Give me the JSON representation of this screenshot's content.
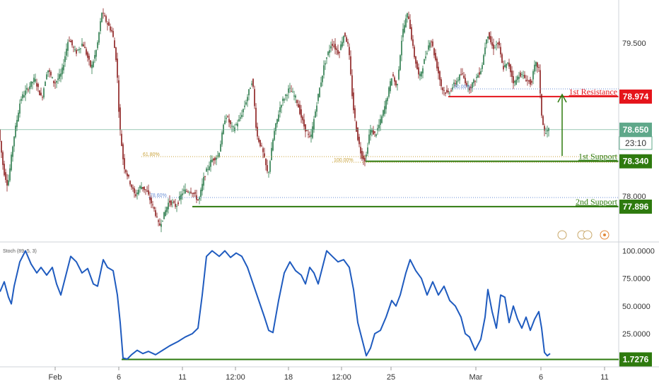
{
  "chart_data": [
    {
      "type": "candlestick",
      "panel": "price",
      "y_ticks": [
        "79.500",
        "78.000"
      ],
      "ylim": [
        77.55,
        79.92
      ],
      "x_ticks": [
        "Feb",
        "6",
        "11",
        "12:00",
        "18",
        "12:00",
        "25",
        "Mar",
        "6",
        "11"
      ],
      "grid": false,
      "last_price": "78.650",
      "countdown": "23:10",
      "ohlc_path": [
        [
          0,
          78.6
        ],
        [
          6,
          78.25
        ],
        [
          12,
          78.1
        ],
        [
          20,
          78.55
        ],
        [
          30,
          78.95
        ],
        [
          40,
          79.05
        ],
        [
          50,
          79.15
        ],
        [
          60,
          78.95
        ],
        [
          68,
          79.25
        ],
        [
          78,
          79.1
        ],
        [
          88,
          79.2
        ],
        [
          98,
          79.55
        ],
        [
          108,
          79.4
        ],
        [
          118,
          79.5
        ],
        [
          130,
          79.25
        ],
        [
          138,
          79.45
        ],
        [
          145,
          79.8
        ],
        [
          152,
          79.7
        ],
        [
          160,
          79.6
        ],
        [
          166,
          79.3
        ],
        [
          170,
          78.7
        ],
        [
          176,
          78.3
        ],
        [
          184,
          78.15
        ],
        [
          192,
          78.0
        ],
        [
          200,
          78.1
        ],
        [
          208,
          78.05
        ],
        [
          214,
          77.95
        ],
        [
          220,
          77.85
        ],
        [
          226,
          77.7
        ],
        [
          232,
          77.8
        ],
        [
          240,
          77.95
        ],
        [
          250,
          77.9
        ],
        [
          260,
          78.05
        ],
        [
          272,
          78.05
        ],
        [
          282,
          77.95
        ],
        [
          290,
          78.2
        ],
        [
          300,
          78.35
        ],
        [
          310,
          78.4
        ],
        [
          320,
          78.8
        ],
        [
          330,
          78.65
        ],
        [
          340,
          78.75
        ],
        [
          350,
          78.95
        ],
        [
          358,
          79.15
        ],
        [
          364,
          78.6
        ],
        [
          372,
          78.45
        ],
        [
          380,
          78.2
        ],
        [
          388,
          78.6
        ],
        [
          398,
          78.9
        ],
        [
          410,
          79.05
        ],
        [
          420,
          78.95
        ],
        [
          430,
          78.7
        ],
        [
          440,
          78.55
        ],
        [
          450,
          78.95
        ],
        [
          460,
          79.3
        ],
        [
          470,
          79.5
        ],
        [
          480,
          79.4
        ],
        [
          488,
          79.6
        ],
        [
          494,
          79.45
        ],
        [
          500,
          78.9
        ],
        [
          506,
          78.6
        ],
        [
          512,
          78.4
        ],
        [
          518,
          78.35
        ],
        [
          524,
          78.65
        ],
        [
          532,
          78.6
        ],
        [
          540,
          78.75
        ],
        [
          548,
          78.95
        ],
        [
          556,
          79.2
        ],
        [
          562,
          79.05
        ],
        [
          570,
          79.6
        ],
        [
          578,
          79.8
        ],
        [
          586,
          79.4
        ],
        [
          594,
          79.15
        ],
        [
          602,
          79.35
        ],
        [
          610,
          79.55
        ],
        [
          618,
          79.3
        ],
        [
          626,
          79.05
        ],
        [
          634,
          79.0
        ],
        [
          644,
          79.1
        ],
        [
          654,
          79.2
        ],
        [
          664,
          79.05
        ],
        [
          674,
          79.15
        ],
        [
          682,
          79.25
        ],
        [
          690,
          79.6
        ],
        [
          698,
          79.45
        ],
        [
          706,
          79.5
        ],
        [
          712,
          79.25
        ],
        [
          720,
          79.3
        ],
        [
          728,
          79.1
        ],
        [
          736,
          79.2
        ],
        [
          744,
          79.15
        ],
        [
          752,
          79.1
        ],
        [
          758,
          79.3
        ],
        [
          763,
          79.25
        ],
        [
          766,
          78.85
        ],
        [
          769,
          78.7
        ],
        [
          772,
          78.6
        ],
        [
          776,
          78.65
        ]
      ],
      "levels": [
        {
          "name": "1st Resistance",
          "value": 78.974,
          "badge": "78.974",
          "color": "#e5141b"
        },
        {
          "name": "1st Support",
          "value": 78.34,
          "badge": "78.340",
          "color": "#2e7a0e"
        },
        {
          "name": "2nd Support",
          "value": 77.896,
          "badge": "77.896",
          "color": "#2e7a0e"
        }
      ],
      "fib_labels": [
        "50.00%",
        "61.80%",
        "100.00%",
        "78.60%"
      ],
      "colors": {
        "up": "#2a7a4a",
        "down": "#8a1c1c",
        "resistance": "#e5141b",
        "support": "#2e7a0e",
        "price_badge": "#5fa88a"
      }
    },
    {
      "type": "line",
      "panel": "stochastic",
      "legend": "Stoch (89, 5, 3)",
      "y_ticks": [
        "100.0000",
        "75.0000",
        "50.0000",
        "25.0000"
      ],
      "ylim": [
        -5,
        108
      ],
      "last_value": "1.7276",
      "line_color": "#1f5bbf",
      "support_color": "#2e7a0e",
      "series": [
        [
          0,
          63
        ],
        [
          6,
          72
        ],
        [
          12,
          58
        ],
        [
          16,
          52
        ],
        [
          20,
          68
        ],
        [
          28,
          90
        ],
        [
          36,
          100
        ],
        [
          44,
          88
        ],
        [
          52,
          80
        ],
        [
          58,
          85
        ],
        [
          66,
          78
        ],
        [
          74,
          85
        ],
        [
          80,
          70
        ],
        [
          86,
          60
        ],
        [
          92,
          75
        ],
        [
          100,
          95
        ],
        [
          108,
          90
        ],
        [
          116,
          80
        ],
        [
          124,
          84
        ],
        [
          132,
          70
        ],
        [
          138,
          68
        ],
        [
          146,
          92
        ],
        [
          152,
          85
        ],
        [
          160,
          82
        ],
        [
          166,
          60
        ],
        [
          170,
          35
        ],
        [
          174,
          3
        ],
        [
          180,
          2
        ],
        [
          186,
          6
        ],
        [
          194,
          10
        ],
        [
          202,
          7
        ],
        [
          210,
          9
        ],
        [
          220,
          6
        ],
        [
          230,
          10
        ],
        [
          240,
          14
        ],
        [
          252,
          18
        ],
        [
          262,
          22
        ],
        [
          272,
          25
        ],
        [
          280,
          30
        ],
        [
          286,
          60
        ],
        [
          292,
          95
        ],
        [
          300,
          100
        ],
        [
          310,
          95
        ],
        [
          318,
          100
        ],
        [
          326,
          94
        ],
        [
          334,
          98
        ],
        [
          342,
          95
        ],
        [
          350,
          85
        ],
        [
          358,
          70
        ],
        [
          366,
          55
        ],
        [
          374,
          40
        ],
        [
          380,
          28
        ],
        [
          386,
          26
        ],
        [
          394,
          55
        ],
        [
          402,
          80
        ],
        [
          410,
          90
        ],
        [
          418,
          82
        ],
        [
          426,
          78
        ],
        [
          432,
          70
        ],
        [
          438,
          85
        ],
        [
          444,
          80
        ],
        [
          450,
          70
        ],
        [
          456,
          85
        ],
        [
          462,
          100
        ],
        [
          470,
          95
        ],
        [
          478,
          90
        ],
        [
          486,
          92
        ],
        [
          494,
          85
        ],
        [
          500,
          65
        ],
        [
          506,
          35
        ],
        [
          512,
          20
        ],
        [
          518,
          5
        ],
        [
          524,
          12
        ],
        [
          530,
          25
        ],
        [
          538,
          28
        ],
        [
          546,
          40
        ],
        [
          554,
          55
        ],
        [
          560,
          50
        ],
        [
          566,
          60
        ],
        [
          574,
          80
        ],
        [
          580,
          92
        ],
        [
          588,
          82
        ],
        [
          596,
          75
        ],
        [
          604,
          60
        ],
        [
          612,
          72
        ],
        [
          620,
          60
        ],
        [
          628,
          68
        ],
        [
          636,
          55
        ],
        [
          644,
          50
        ],
        [
          652,
          40
        ],
        [
          658,
          25
        ],
        [
          664,
          22
        ],
        [
          672,
          10
        ],
        [
          680,
          20
        ],
        [
          686,
          40
        ],
        [
          690,
          65
        ],
        [
          696,
          45
        ],
        [
          702,
          30
        ],
        [
          708,
          60
        ],
        [
          714,
          58
        ],
        [
          720,
          35
        ],
        [
          726,
          50
        ],
        [
          732,
          38
        ],
        [
          738,
          30
        ],
        [
          744,
          40
        ],
        [
          750,
          28
        ],
        [
          756,
          38
        ],
        [
          762,
          45
        ],
        [
          766,
          30
        ],
        [
          770,
          8
        ],
        [
          774,
          5
        ],
        [
          778,
          7
        ]
      ]
    }
  ]
}
